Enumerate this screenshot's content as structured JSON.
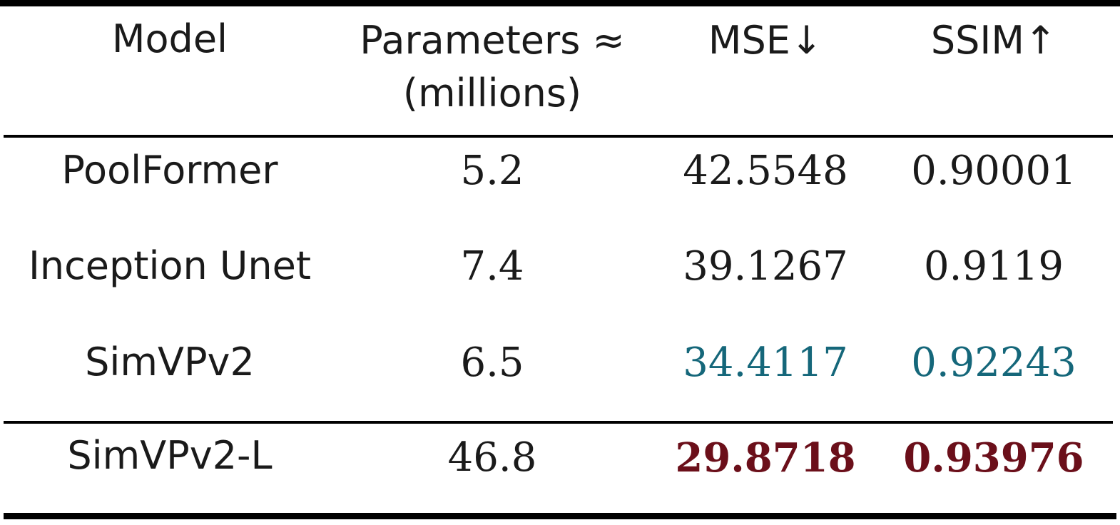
{
  "table": {
    "headers": {
      "model": "Model",
      "params_line1": "Parameters ≈",
      "params_line2": "(millions)",
      "mse": "MSE↓",
      "ssim": "SSIM↑"
    },
    "rows": [
      {
        "model": "PoolFormer",
        "params": "5.2",
        "mse": "42.5548",
        "ssim": "0.90001"
      },
      {
        "model": "Inception Unet",
        "params": "7.4",
        "mse": "39.1267",
        "ssim": "0.9119"
      },
      {
        "model": "SimVPv2",
        "params": "6.5",
        "mse": "34.4117",
        "ssim": "0.92243"
      },
      {
        "model": "SimVPv2-L",
        "params": "46.8",
        "mse": "29.8718",
        "ssim": "0.93976"
      }
    ],
    "colors": {
      "second_best": "#15677a",
      "best": "#6b0f1a"
    }
  }
}
